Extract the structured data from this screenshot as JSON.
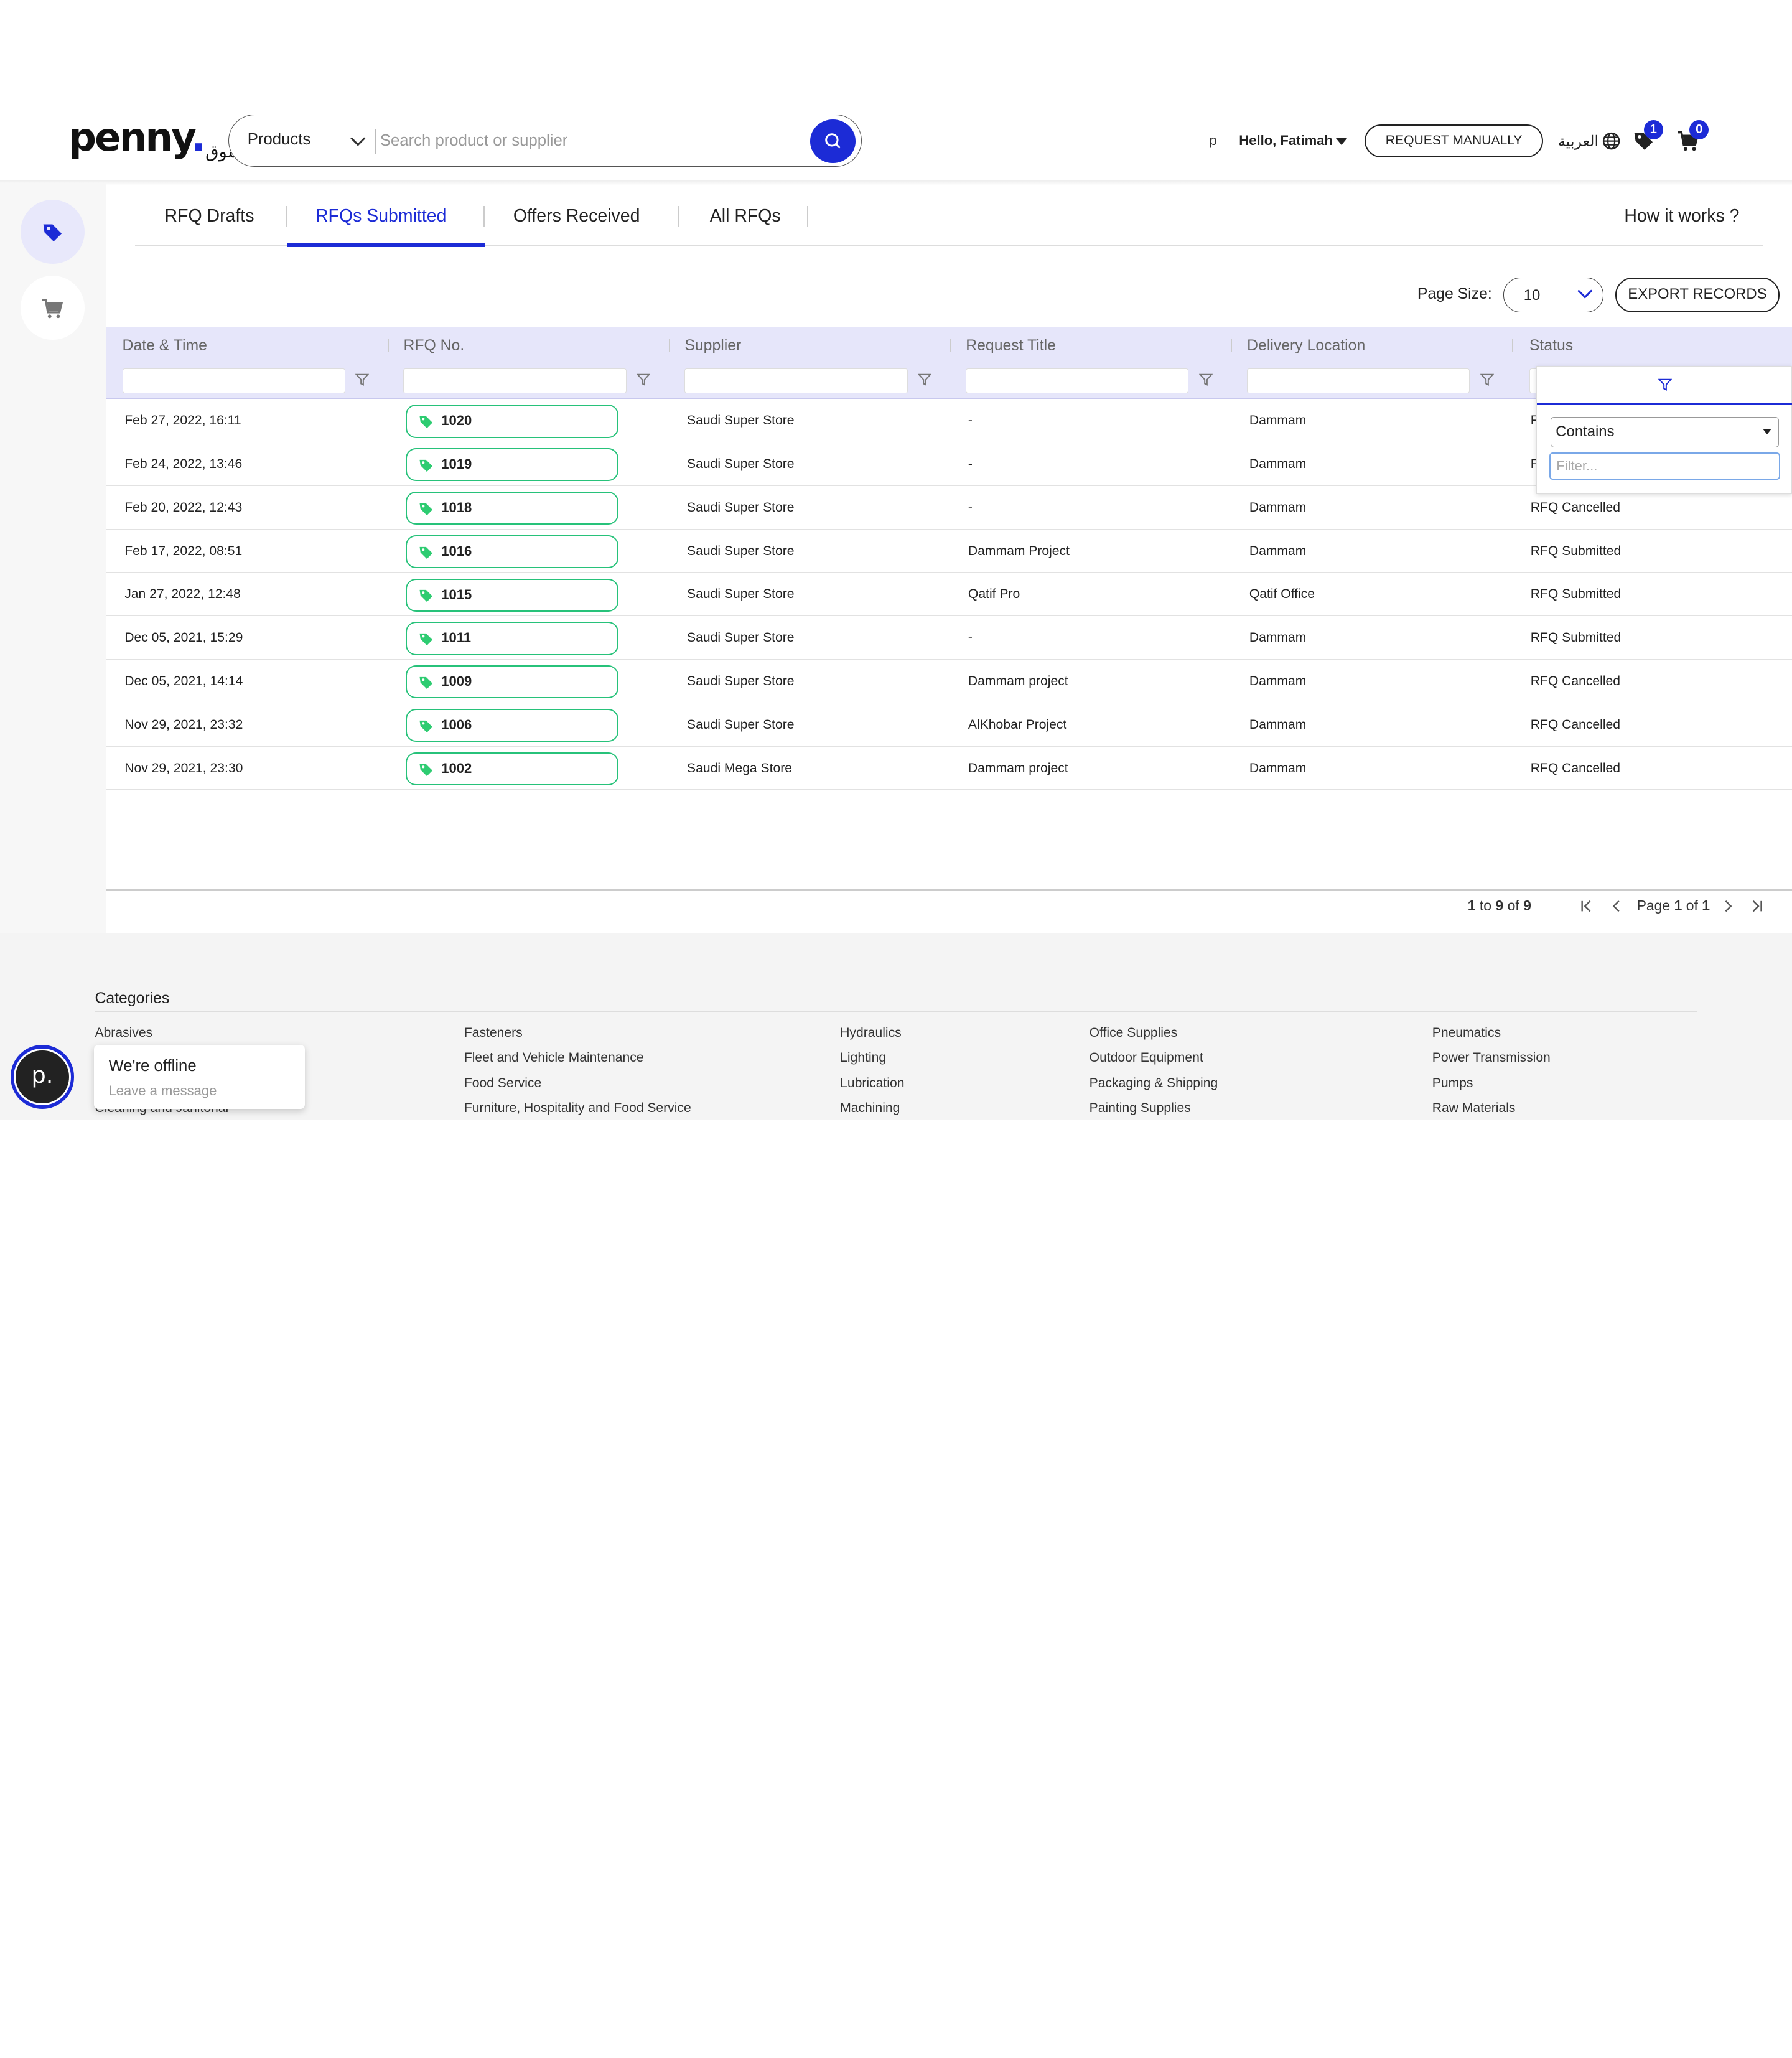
{
  "header": {
    "logo": {
      "text": "penny",
      "dot": ".",
      "arabic": "سوق"
    },
    "search": {
      "category": "Products",
      "placeholder": "Search product or supplier"
    },
    "user_initial": "p",
    "greeting": "Hello, Fatimah",
    "request_manually": "REQUEST MANUALLY",
    "language": "العربية",
    "wishlist_count": "1",
    "cart_count": "0"
  },
  "tabs": [
    {
      "label": "RFQ Drafts"
    },
    {
      "label": "RFQs Submitted",
      "active": true
    },
    {
      "label": "Offers Received"
    },
    {
      "label": "All RFQs"
    }
  ],
  "how_it_works": "How it works ?",
  "toolbar": {
    "page_size_label": "Page Size:",
    "page_size_value": "10",
    "export_label": "EXPORT RECORDS"
  },
  "table": {
    "columns": [
      "Date & Time",
      "RFQ No.",
      "Supplier",
      "Request Title",
      "Delivery Location",
      "Status"
    ],
    "rows": [
      {
        "date": "Feb 27, 2022, 16:11",
        "rfq": "1020",
        "supplier": "Saudi Super Store",
        "title": "-",
        "location": "Dammam",
        "status": "RFQ Submitted"
      },
      {
        "date": "Feb 24, 2022, 13:46",
        "rfq": "1019",
        "supplier": "Saudi Super Store",
        "title": "-",
        "location": "Dammam",
        "status": "RFQ Submitted"
      },
      {
        "date": "Feb 20, 2022, 12:43",
        "rfq": "1018",
        "supplier": "Saudi Super Store",
        "title": "-",
        "location": "Dammam",
        "status": "RFQ Cancelled"
      },
      {
        "date": "Feb 17, 2022, 08:51",
        "rfq": "1016",
        "supplier": "Saudi Super Store",
        "title": "Dammam Project",
        "location": "Dammam",
        "status": "RFQ Submitted"
      },
      {
        "date": "Jan 27, 2022, 12:48",
        "rfq": "1015",
        "supplier": "Saudi Super Store",
        "title": "Qatif Pro",
        "location": "Qatif Office",
        "status": "RFQ Submitted"
      },
      {
        "date": "Dec 05, 2021, 15:29",
        "rfq": "1011",
        "supplier": "Saudi Super Store",
        "title": "-",
        "location": "Dammam",
        "status": "RFQ Submitted"
      },
      {
        "date": "Dec 05, 2021, 14:14",
        "rfq": "1009",
        "supplier": "Saudi Super Store",
        "title": "Dammam project",
        "location": "Dammam",
        "status": "RFQ Cancelled"
      },
      {
        "date": "Nov 29, 2021, 23:32",
        "rfq": "1006",
        "supplier": "Saudi Super Store",
        "title": "AlKhobar Project",
        "location": "Dammam",
        "status": "RFQ Cancelled"
      },
      {
        "date": "Nov 29, 2021, 23:30",
        "rfq": "1002",
        "supplier": "Saudi Mega Store",
        "title": "Dammam project",
        "location": "Dammam",
        "status": "RFQ Cancelled"
      }
    ]
  },
  "filter_popup": {
    "operator": "Contains",
    "placeholder": "Filter..."
  },
  "pagination": {
    "from": "1",
    "to_word": "to",
    "to": "9",
    "of_word": "of",
    "total": "9",
    "page_word": "Page",
    "page": "1",
    "of2": "of",
    "pages": "1"
  },
  "footer": {
    "categories_title": "Categories",
    "columns": [
      [
        "Abrasives",
        "",
        "",
        "Cleaning and Janitorial"
      ],
      [
        "Fasteners",
        "Fleet and Vehicle Maintenance",
        "Food Service",
        "Furniture, Hospitality and Food Service"
      ],
      [
        "Hydraulics",
        "Lighting",
        "Lubrication",
        "Machining"
      ],
      [
        "Office Supplies",
        "Outdoor Equipment",
        "Packaging & Shipping",
        "Painting Supplies"
      ],
      [
        "Pneumatics",
        "Power Transmission",
        "Pumps",
        "Raw Materials"
      ]
    ]
  },
  "chat": {
    "avatar_letter": "p.",
    "title": "We're offline",
    "subtitle": "Leave a message"
  },
  "colors": {
    "brand": "#1c2bd6",
    "pill_border": "#27c27a",
    "tag_icon": "#2ecc71"
  }
}
